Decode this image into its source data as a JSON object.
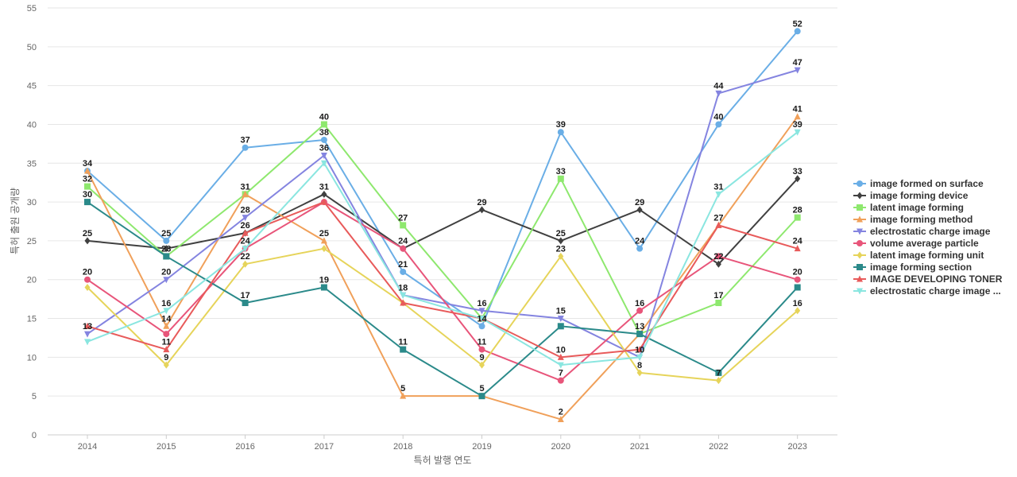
{
  "chart_data": {
    "type": "line",
    "xlabel": "특허 발행 연도",
    "ylabel": "특허 출원 공개량",
    "x": [
      "2014",
      "2015",
      "2016",
      "2017",
      "2018",
      "2019",
      "2020",
      "2021",
      "2022",
      "2023"
    ],
    "ylim": [
      0,
      55
    ],
    "yticks": [
      0,
      5,
      10,
      15,
      20,
      25,
      30,
      35,
      40,
      45,
      50,
      55
    ],
    "grid": true,
    "legend_position": "right",
    "series": [
      {
        "name": "image formed on surface",
        "color": "#6aaee6",
        "marker": "circle",
        "values": [
          34,
          25,
          37,
          38,
          21,
          14,
          39,
          24,
          40,
          52
        ]
      },
      {
        "name": "image forming device",
        "color": "#404040",
        "marker": "diamond",
        "values": [
          25,
          24,
          26,
          31,
          24,
          29,
          25,
          29,
          22,
          33
        ]
      },
      {
        "name": "latent image forming",
        "color": "#8ee86e",
        "marker": "square",
        "values": [
          32,
          23,
          31,
          40,
          27,
          15,
          33,
          13,
          17,
          28
        ]
      },
      {
        "name": "image forming method",
        "color": "#f0a05a",
        "marker": "triangle-up",
        "values": [
          34,
          14,
          31,
          25,
          5,
          5,
          2,
          13,
          27,
          41
        ]
      },
      {
        "name": "electrostatic charge image",
        "color": "#8484e0",
        "marker": "triangle-down",
        "values": [
          13,
          20,
          28,
          36,
          18,
          16,
          15,
          10,
          44,
          47
        ]
      },
      {
        "name": "volume average particle",
        "color": "#e8557a",
        "marker": "circle",
        "values": [
          20,
          13,
          24,
          30,
          24,
          11,
          7,
          16,
          23,
          20
        ]
      },
      {
        "name": "latent image forming unit",
        "color": "#e6d45a",
        "marker": "diamond",
        "values": [
          19,
          9,
          22,
          24,
          17,
          9,
          23,
          8,
          7,
          16
        ]
      },
      {
        "name": "image forming section",
        "color": "#2b8a8a",
        "marker": "square",
        "values": [
          30,
          23,
          17,
          19,
          11,
          5,
          14,
          13,
          8,
          19
        ]
      },
      {
        "name": "IMAGE DEVELOPING TONER",
        "color": "#e85a5a",
        "marker": "triangle-up",
        "values": [
          14,
          11,
          26,
          30,
          17,
          15,
          10,
          11,
          27,
          24
        ]
      },
      {
        "name": "electrostatic charge image ...",
        "color": "#8ae6e0",
        "marker": "triangle-down",
        "values": [
          12,
          16,
          24,
          35,
          18,
          15,
          9,
          10,
          31,
          39
        ]
      }
    ],
    "data_labels": [
      {
        "x": "2014",
        "text": "34"
      },
      {
        "x": "2014",
        "text": "32"
      },
      {
        "x": "2014",
        "text": "30"
      },
      {
        "x": "2014",
        "text": "25"
      },
      {
        "x": "2014",
        "text": "20"
      },
      {
        "x": "2014",
        "text": "13"
      },
      {
        "x": "2015",
        "text": "25"
      },
      {
        "x": "2015",
        "text": "23"
      },
      {
        "x": "2015",
        "text": "20"
      },
      {
        "x": "2015",
        "text": "16"
      },
      {
        "x": "2015",
        "text": "14"
      },
      {
        "x": "2015",
        "text": "11"
      },
      {
        "x": "2015",
        "text": "9"
      },
      {
        "x": "2016",
        "text": "37"
      },
      {
        "x": "2016",
        "text": "31"
      },
      {
        "x": "2016",
        "text": "28"
      },
      {
        "x": "2016",
        "text": "26"
      },
      {
        "x": "2016",
        "text": "24"
      },
      {
        "x": "2016",
        "text": "22"
      },
      {
        "x": "2016",
        "text": "17"
      },
      {
        "x": "2017",
        "text": "40"
      },
      {
        "x": "2017",
        "text": "38"
      },
      {
        "x": "2017",
        "text": "36"
      },
      {
        "x": "2017",
        "text": "31"
      },
      {
        "x": "2017",
        "text": "25"
      },
      {
        "x": "2017",
        "text": "19"
      },
      {
        "x": "2018",
        "text": "27"
      },
      {
        "x": "2018",
        "text": "24"
      },
      {
        "x": "2018",
        "text": "21"
      },
      {
        "x": "2018",
        "text": "18"
      },
      {
        "x": "2018",
        "text": "11"
      },
      {
        "x": "2018",
        "text": "5"
      },
      {
        "x": "2019",
        "text": "29"
      },
      {
        "x": "2019",
        "text": "16"
      },
      {
        "x": "2019",
        "text": "14"
      },
      {
        "x": "2019",
        "text": "11"
      },
      {
        "x": "2019",
        "text": "9"
      },
      {
        "x": "2019",
        "text": "5"
      },
      {
        "x": "2020",
        "text": "39"
      },
      {
        "x": "2020",
        "text": "33"
      },
      {
        "x": "2020",
        "text": "25"
      },
      {
        "x": "2020",
        "text": "23"
      },
      {
        "x": "2020",
        "text": "15"
      },
      {
        "x": "2020",
        "text": "10"
      },
      {
        "x": "2020",
        "text": "7"
      },
      {
        "x": "2020",
        "text": "2"
      },
      {
        "x": "2021",
        "text": "29"
      },
      {
        "x": "2021",
        "text": "24"
      },
      {
        "x": "2021",
        "text": "16"
      },
      {
        "x": "2021",
        "text": "13"
      },
      {
        "x": "2021",
        "text": "10"
      },
      {
        "x": "2021",
        "text": "8"
      },
      {
        "x": "2022",
        "text": "44"
      },
      {
        "x": "2022",
        "text": "40"
      },
      {
        "x": "2022",
        "text": "31"
      },
      {
        "x": "2022",
        "text": "27"
      },
      {
        "x": "2022",
        "text": "22"
      },
      {
        "x": "2022",
        "text": "17"
      },
      {
        "x": "2022",
        "text": "7"
      },
      {
        "x": "2023",
        "text": "52"
      },
      {
        "x": "2023",
        "text": "47"
      },
      {
        "x": "2023",
        "text": "41"
      },
      {
        "x": "2023",
        "text": "39"
      },
      {
        "x": "2023",
        "text": "33"
      },
      {
        "x": "2023",
        "text": "28"
      },
      {
        "x": "2023",
        "text": "24"
      },
      {
        "x": "2023",
        "text": "20"
      },
      {
        "x": "2023",
        "text": "16"
      }
    ]
  }
}
